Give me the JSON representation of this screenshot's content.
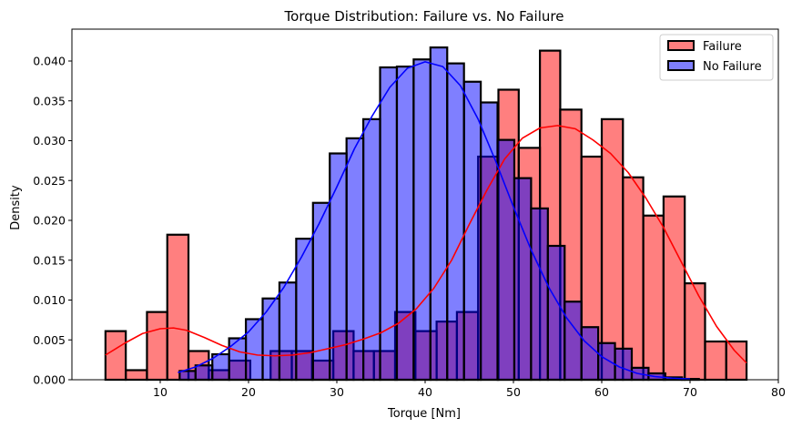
{
  "chart_data": {
    "type": "bar",
    "subtype": "histogram-with-kde",
    "title": "Torque Distribution: Failure vs. No Failure",
    "xlabel": "Torque [Nm]",
    "ylabel": "Density",
    "xlim": [
      0,
      80
    ],
    "ylim": [
      0,
      0.044
    ],
    "xticks": [
      10,
      20,
      30,
      40,
      50,
      60,
      70,
      80
    ],
    "yticks": [
      0.0,
      0.005,
      0.01,
      0.015,
      0.02,
      0.025,
      0.03,
      0.035,
      0.04
    ],
    "ytick_labels": [
      "0.000",
      "0.005",
      "0.010",
      "0.015",
      "0.020",
      "0.025",
      "0.030",
      "0.035",
      "0.040"
    ],
    "xtick_labels": [
      "10",
      "20",
      "30",
      "40",
      "50",
      "60",
      "70",
      "80"
    ],
    "legend_position": "top-right",
    "grid": false,
    "series": [
      {
        "name": "Failure",
        "color": "#ff0000",
        "bar_fill": "rgba(255,0,0,0.5)",
        "bins": [
          {
            "x0": 3.8,
            "x1": 6.1,
            "y": 0.0061
          },
          {
            "x0": 6.1,
            "x1": 8.5,
            "y": 0.0012
          },
          {
            "x0": 8.5,
            "x1": 10.8,
            "y": 0.0085
          },
          {
            "x0": 10.8,
            "x1": 13.2,
            "y": 0.0182
          },
          {
            "x0": 13.2,
            "x1": 15.5,
            "y": 0.0036
          },
          {
            "x0": 15.5,
            "x1": 17.8,
            "y": 0.0012
          },
          {
            "x0": 17.8,
            "x1": 20.2,
            "y": 0.0024
          },
          {
            "x0": 20.2,
            "x1": 22.5,
            "y": 0.0
          },
          {
            "x0": 22.5,
            "x1": 24.9,
            "y": 0.0036
          },
          {
            "x0": 24.9,
            "x1": 27.2,
            "y": 0.0036
          },
          {
            "x0": 27.2,
            "x1": 29.6,
            "y": 0.0024
          },
          {
            "x0": 29.6,
            "x1": 31.9,
            "y": 0.0061
          },
          {
            "x0": 31.9,
            "x1": 34.2,
            "y": 0.0036
          },
          {
            "x0": 34.2,
            "x1": 36.6,
            "y": 0.0036
          },
          {
            "x0": 36.6,
            "x1": 38.9,
            "y": 0.0085
          },
          {
            "x0": 38.9,
            "x1": 41.3,
            "y": 0.0061
          },
          {
            "x0": 41.3,
            "x1": 43.6,
            "y": 0.0073
          },
          {
            "x0": 43.6,
            "x1": 46.0,
            "y": 0.0085
          },
          {
            "x0": 46.0,
            "x1": 48.3,
            "y": 0.028
          },
          {
            "x0": 48.3,
            "x1": 50.6,
            "y": 0.0364
          },
          {
            "x0": 50.6,
            "x1": 53.0,
            "y": 0.0291
          },
          {
            "x0": 53.0,
            "x1": 55.3,
            "y": 0.0413
          },
          {
            "x0": 55.3,
            "x1": 57.7,
            "y": 0.0339
          },
          {
            "x0": 57.7,
            "x1": 60.0,
            "y": 0.028
          },
          {
            "x0": 60.0,
            "x1": 62.4,
            "y": 0.0327
          },
          {
            "x0": 62.4,
            "x1": 64.7,
            "y": 0.0254
          },
          {
            "x0": 64.7,
            "x1": 67.0,
            "y": 0.0206
          },
          {
            "x0": 67.0,
            "x1": 69.4,
            "y": 0.023
          },
          {
            "x0": 69.4,
            "x1": 71.7,
            "y": 0.0121
          },
          {
            "x0": 71.7,
            "x1": 74.1,
            "y": 0.0048
          },
          {
            "x0": 74.1,
            "x1": 76.4,
            "y": 0.0048
          }
        ],
        "kde": {
          "x": [
            3.8,
            6,
            8,
            10,
            11.5,
            13,
            15,
            17,
            19,
            21,
            23,
            25,
            27,
            29,
            31,
            33,
            35,
            37,
            39,
            41,
            43,
            45,
            47,
            49,
            51,
            53,
            55,
            57,
            59,
            61,
            63,
            65,
            67,
            69,
            71,
            73,
            75,
            76.4
          ],
          "y": [
            0.0031,
            0.0046,
            0.0058,
            0.0064,
            0.0065,
            0.0062,
            0.0053,
            0.0043,
            0.0035,
            0.0031,
            0.003,
            0.0031,
            0.0034,
            0.0039,
            0.0044,
            0.0051,
            0.0059,
            0.0071,
            0.0089,
            0.0115,
            0.015,
            0.0195,
            0.0238,
            0.0277,
            0.0303,
            0.0316,
            0.0319,
            0.0315,
            0.0301,
            0.0284,
            0.026,
            0.0228,
            0.0191,
            0.0148,
            0.0105,
            0.0067,
            0.0037,
            0.0021
          ]
        }
      },
      {
        "name": "No Failure",
        "color": "#0000ff",
        "bar_fill": "rgba(0,0,255,0.5)",
        "bins": [
          {
            "x0": 12.2,
            "x1": 14.0,
            "y": 0.0011
          },
          {
            "x0": 14.0,
            "x1": 15.9,
            "y": 0.0018
          },
          {
            "x0": 15.9,
            "x1": 17.8,
            "y": 0.0032
          },
          {
            "x0": 17.8,
            "x1": 19.7,
            "y": 0.0052
          },
          {
            "x0": 19.7,
            "x1": 21.6,
            "y": 0.0076
          },
          {
            "x0": 21.6,
            "x1": 23.5,
            "y": 0.0102
          },
          {
            "x0": 23.5,
            "x1": 25.4,
            "y": 0.0122
          },
          {
            "x0": 25.4,
            "x1": 27.3,
            "y": 0.0177
          },
          {
            "x0": 27.3,
            "x1": 29.2,
            "y": 0.0222
          },
          {
            "x0": 29.2,
            "x1": 31.1,
            "y": 0.0284
          },
          {
            "x0": 31.1,
            "x1": 33.0,
            "y": 0.0303
          },
          {
            "x0": 33.0,
            "x1": 34.9,
            "y": 0.0327
          },
          {
            "x0": 34.9,
            "x1": 36.8,
            "y": 0.0392
          },
          {
            "x0": 36.8,
            "x1": 38.7,
            "y": 0.0393
          },
          {
            "x0": 38.7,
            "x1": 40.6,
            "y": 0.0402
          },
          {
            "x0": 40.6,
            "x1": 42.5,
            "y": 0.0417
          },
          {
            "x0": 42.5,
            "x1": 44.4,
            "y": 0.0397
          },
          {
            "x0": 44.4,
            "x1": 46.3,
            "y": 0.0374
          },
          {
            "x0": 46.3,
            "x1": 48.2,
            "y": 0.0348
          },
          {
            "x0": 48.2,
            "x1": 50.1,
            "y": 0.0301
          },
          {
            "x0": 50.1,
            "x1": 52.0,
            "y": 0.0253
          },
          {
            "x0": 52.0,
            "x1": 53.9,
            "y": 0.0215
          },
          {
            "x0": 53.9,
            "x1": 55.8,
            "y": 0.0168
          },
          {
            "x0": 55.8,
            "x1": 57.7,
            "y": 0.0098
          },
          {
            "x0": 57.7,
            "x1": 59.6,
            "y": 0.0066
          },
          {
            "x0": 59.6,
            "x1": 61.5,
            "y": 0.0046
          },
          {
            "x0": 61.5,
            "x1": 63.4,
            "y": 0.0039
          },
          {
            "x0": 63.4,
            "x1": 65.3,
            "y": 0.0015
          },
          {
            "x0": 65.3,
            "x1": 67.2,
            "y": 0.0008
          },
          {
            "x0": 67.2,
            "x1": 69.1,
            "y": 0.0003
          },
          {
            "x0": 69.1,
            "x1": 71.0,
            "y": 0.0001
          }
        ],
        "kde": {
          "x": [
            12,
            14,
            16,
            18,
            20,
            22,
            24,
            26,
            28,
            30,
            32,
            34,
            36,
            38,
            40,
            42,
            44,
            46,
            48,
            50,
            52,
            54,
            56,
            58,
            60,
            62,
            64,
            66,
            68,
            70
          ],
          "y": [
            0.0009,
            0.0016,
            0.0027,
            0.0042,
            0.006,
            0.0085,
            0.0116,
            0.0154,
            0.0196,
            0.0242,
            0.029,
            0.0331,
            0.0367,
            0.0391,
            0.0399,
            0.0393,
            0.0369,
            0.0327,
            0.0274,
            0.0217,
            0.0163,
            0.0116,
            0.0078,
            0.0049,
            0.0029,
            0.0016,
            0.0008,
            0.0004,
            0.0002,
            0.0001
          ]
        }
      }
    ]
  }
}
